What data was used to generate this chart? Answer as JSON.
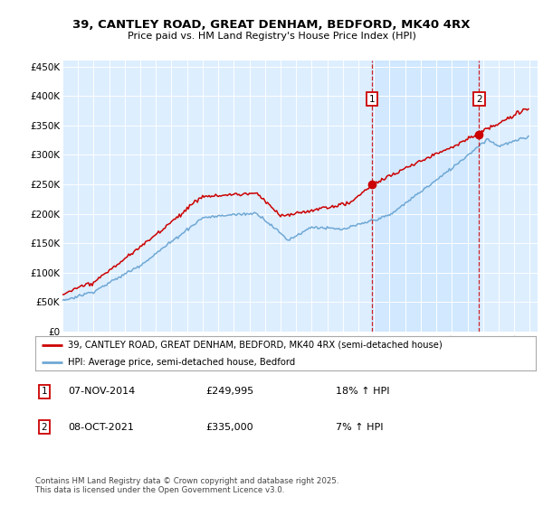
{
  "title": "39, CANTLEY ROAD, GREAT DENHAM, BEDFORD, MK40 4RX",
  "subtitle": "Price paid vs. HM Land Registry's House Price Index (HPI)",
  "ylabel_ticks": [
    "£0",
    "£50K",
    "£100K",
    "£150K",
    "£200K",
    "£250K",
    "£300K",
    "£350K",
    "£400K",
    "£450K"
  ],
  "ytick_values": [
    0,
    50000,
    100000,
    150000,
    200000,
    250000,
    300000,
    350000,
    400000,
    450000
  ],
  "ylim": [
    0,
    460000
  ],
  "x_start_year": 1995,
  "x_end_year": 2025,
  "hpi_color": "#6fa8d4",
  "price_color": "#cc0000",
  "transaction1_year": 2014.854,
  "transaction1_price": 249995,
  "transaction1_date": "07-NOV-2014",
  "transaction1_label": "18% ↑ HPI",
  "transaction2_year": 2021.75,
  "transaction2_price": 335000,
  "transaction2_date": "08-OCT-2021",
  "transaction2_label": "7% ↑ HPI",
  "legend_line1": "39, CANTLEY ROAD, GREAT DENHAM, BEDFORD, MK40 4RX (semi-detached house)",
  "legend_line2": "HPI: Average price, semi-detached house, Bedford",
  "footer": "Contains HM Land Registry data © Crown copyright and database right 2025.\nThis data is licensed under the Open Government Licence v3.0.",
  "background_color": "#ffffff",
  "plot_bg_color": "#ddeeff",
  "shade_color": "#cce0f5"
}
